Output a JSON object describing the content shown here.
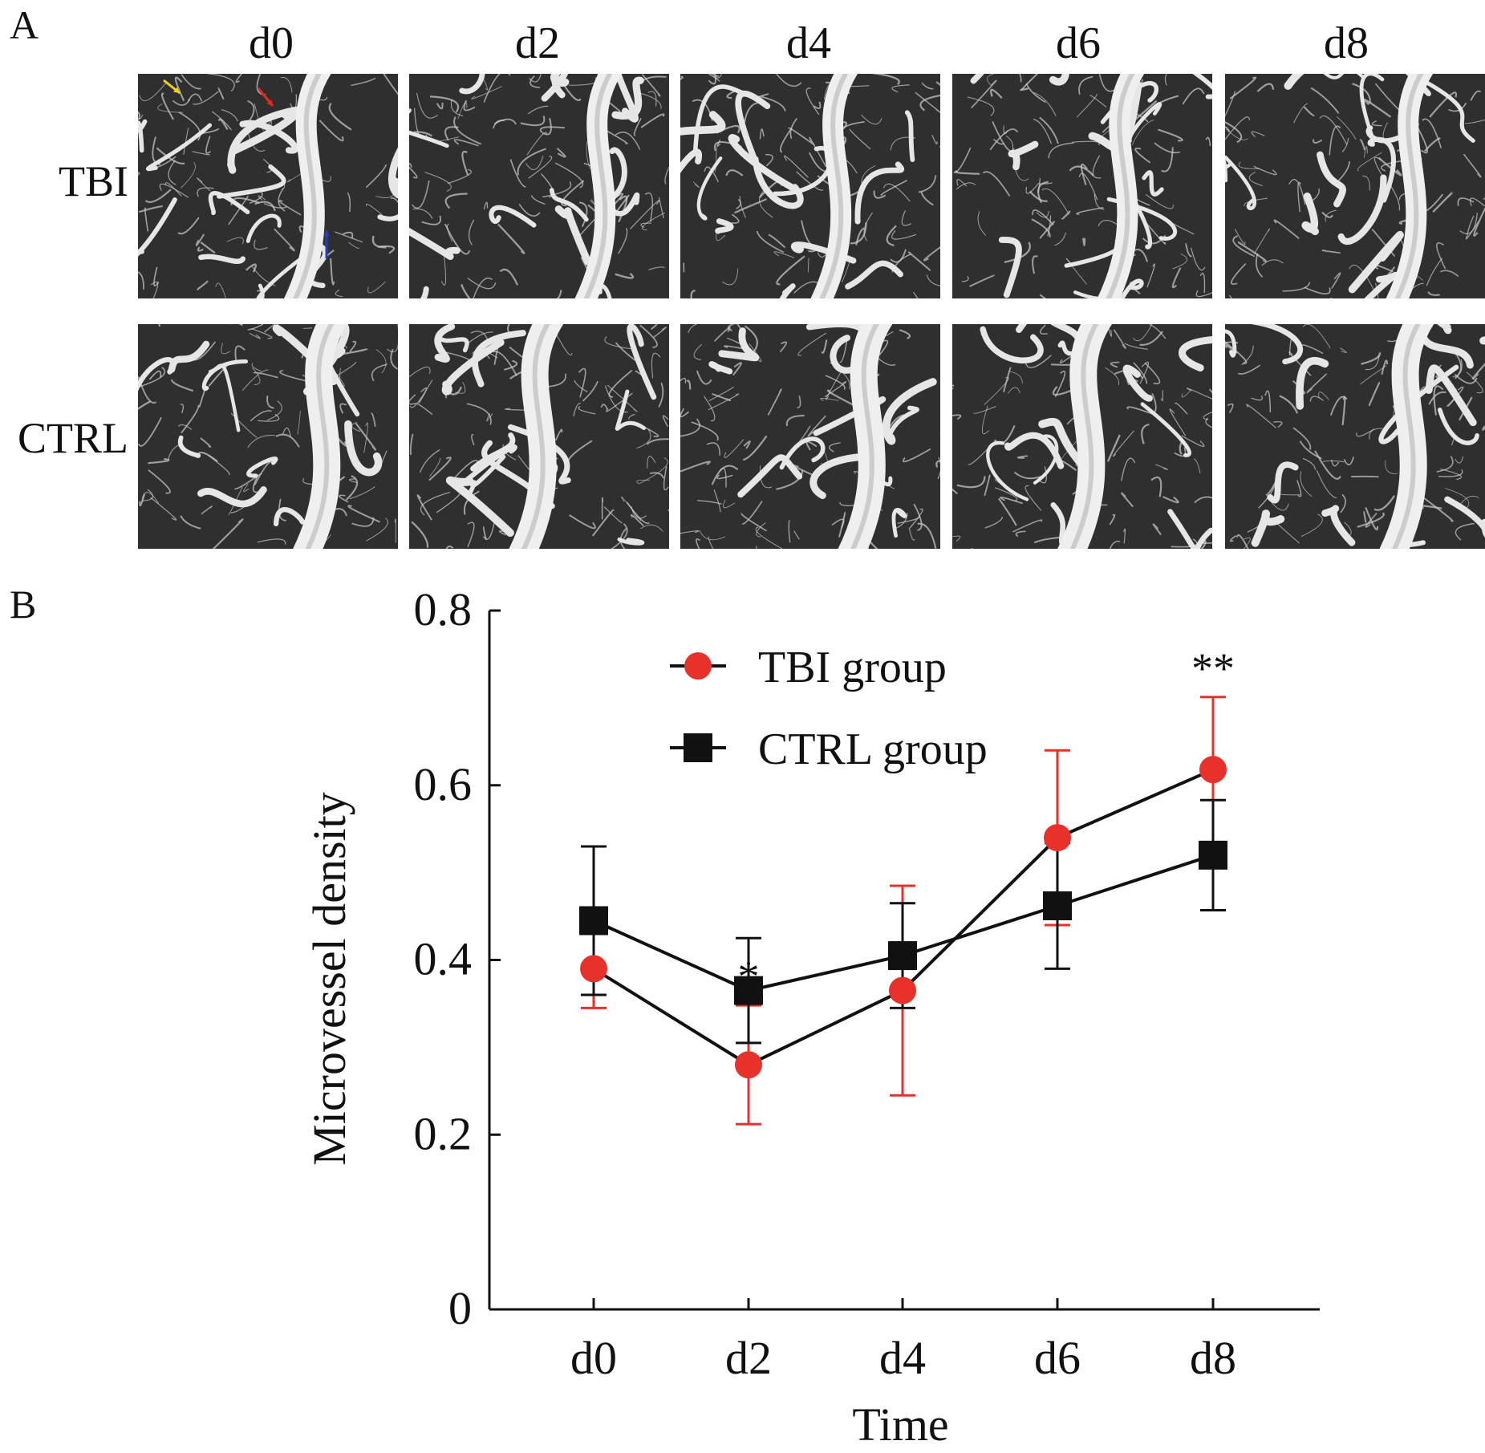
{
  "panel_a": {
    "letter": "A",
    "columns": [
      "d0",
      "d2",
      "d4",
      "d6",
      "d8"
    ],
    "rows": [
      "TBI",
      "CTRL"
    ],
    "arrow_colors": {
      "yellow": "#f2d21b",
      "red": "#e02a23",
      "blue": "#2b3fb0"
    }
  },
  "panel_b": {
    "letter": "B"
  },
  "colors": {
    "tbi": "#e8312b",
    "ctrl": "#111111"
  },
  "chart_data": {
    "type": "line",
    "title": "",
    "xlabel": "Time",
    "ylabel": "Microvessel density",
    "categories": [
      "d0",
      "d2",
      "d4",
      "d6",
      "d8"
    ],
    "ylim": [
      0,
      0.8
    ],
    "yticks": [
      0,
      0.2,
      0.4,
      0.6,
      0.8
    ],
    "ytick_labels": [
      "0",
      "0.2",
      "0.4",
      "0.6",
      "0.8"
    ],
    "series": [
      {
        "name": "TBI group",
        "marker": "circle",
        "color": "#e8312b",
        "values": [
          0.39,
          0.28,
          0.365,
          0.54,
          0.618
        ],
        "errors": [
          0.045,
          0.068,
          0.12,
          0.1,
          0.083
        ]
      },
      {
        "name": "CTRL group",
        "marker": "square",
        "color": "#111111",
        "values": [
          0.445,
          0.365,
          0.405,
          0.462,
          0.52
        ],
        "errors": [
          0.085,
          0.06,
          0.06,
          0.072,
          0.063
        ]
      }
    ],
    "annotations": [
      {
        "category": "d2",
        "text": "*"
      },
      {
        "category": "d8",
        "text": "**"
      }
    ],
    "legend": "top-center"
  }
}
